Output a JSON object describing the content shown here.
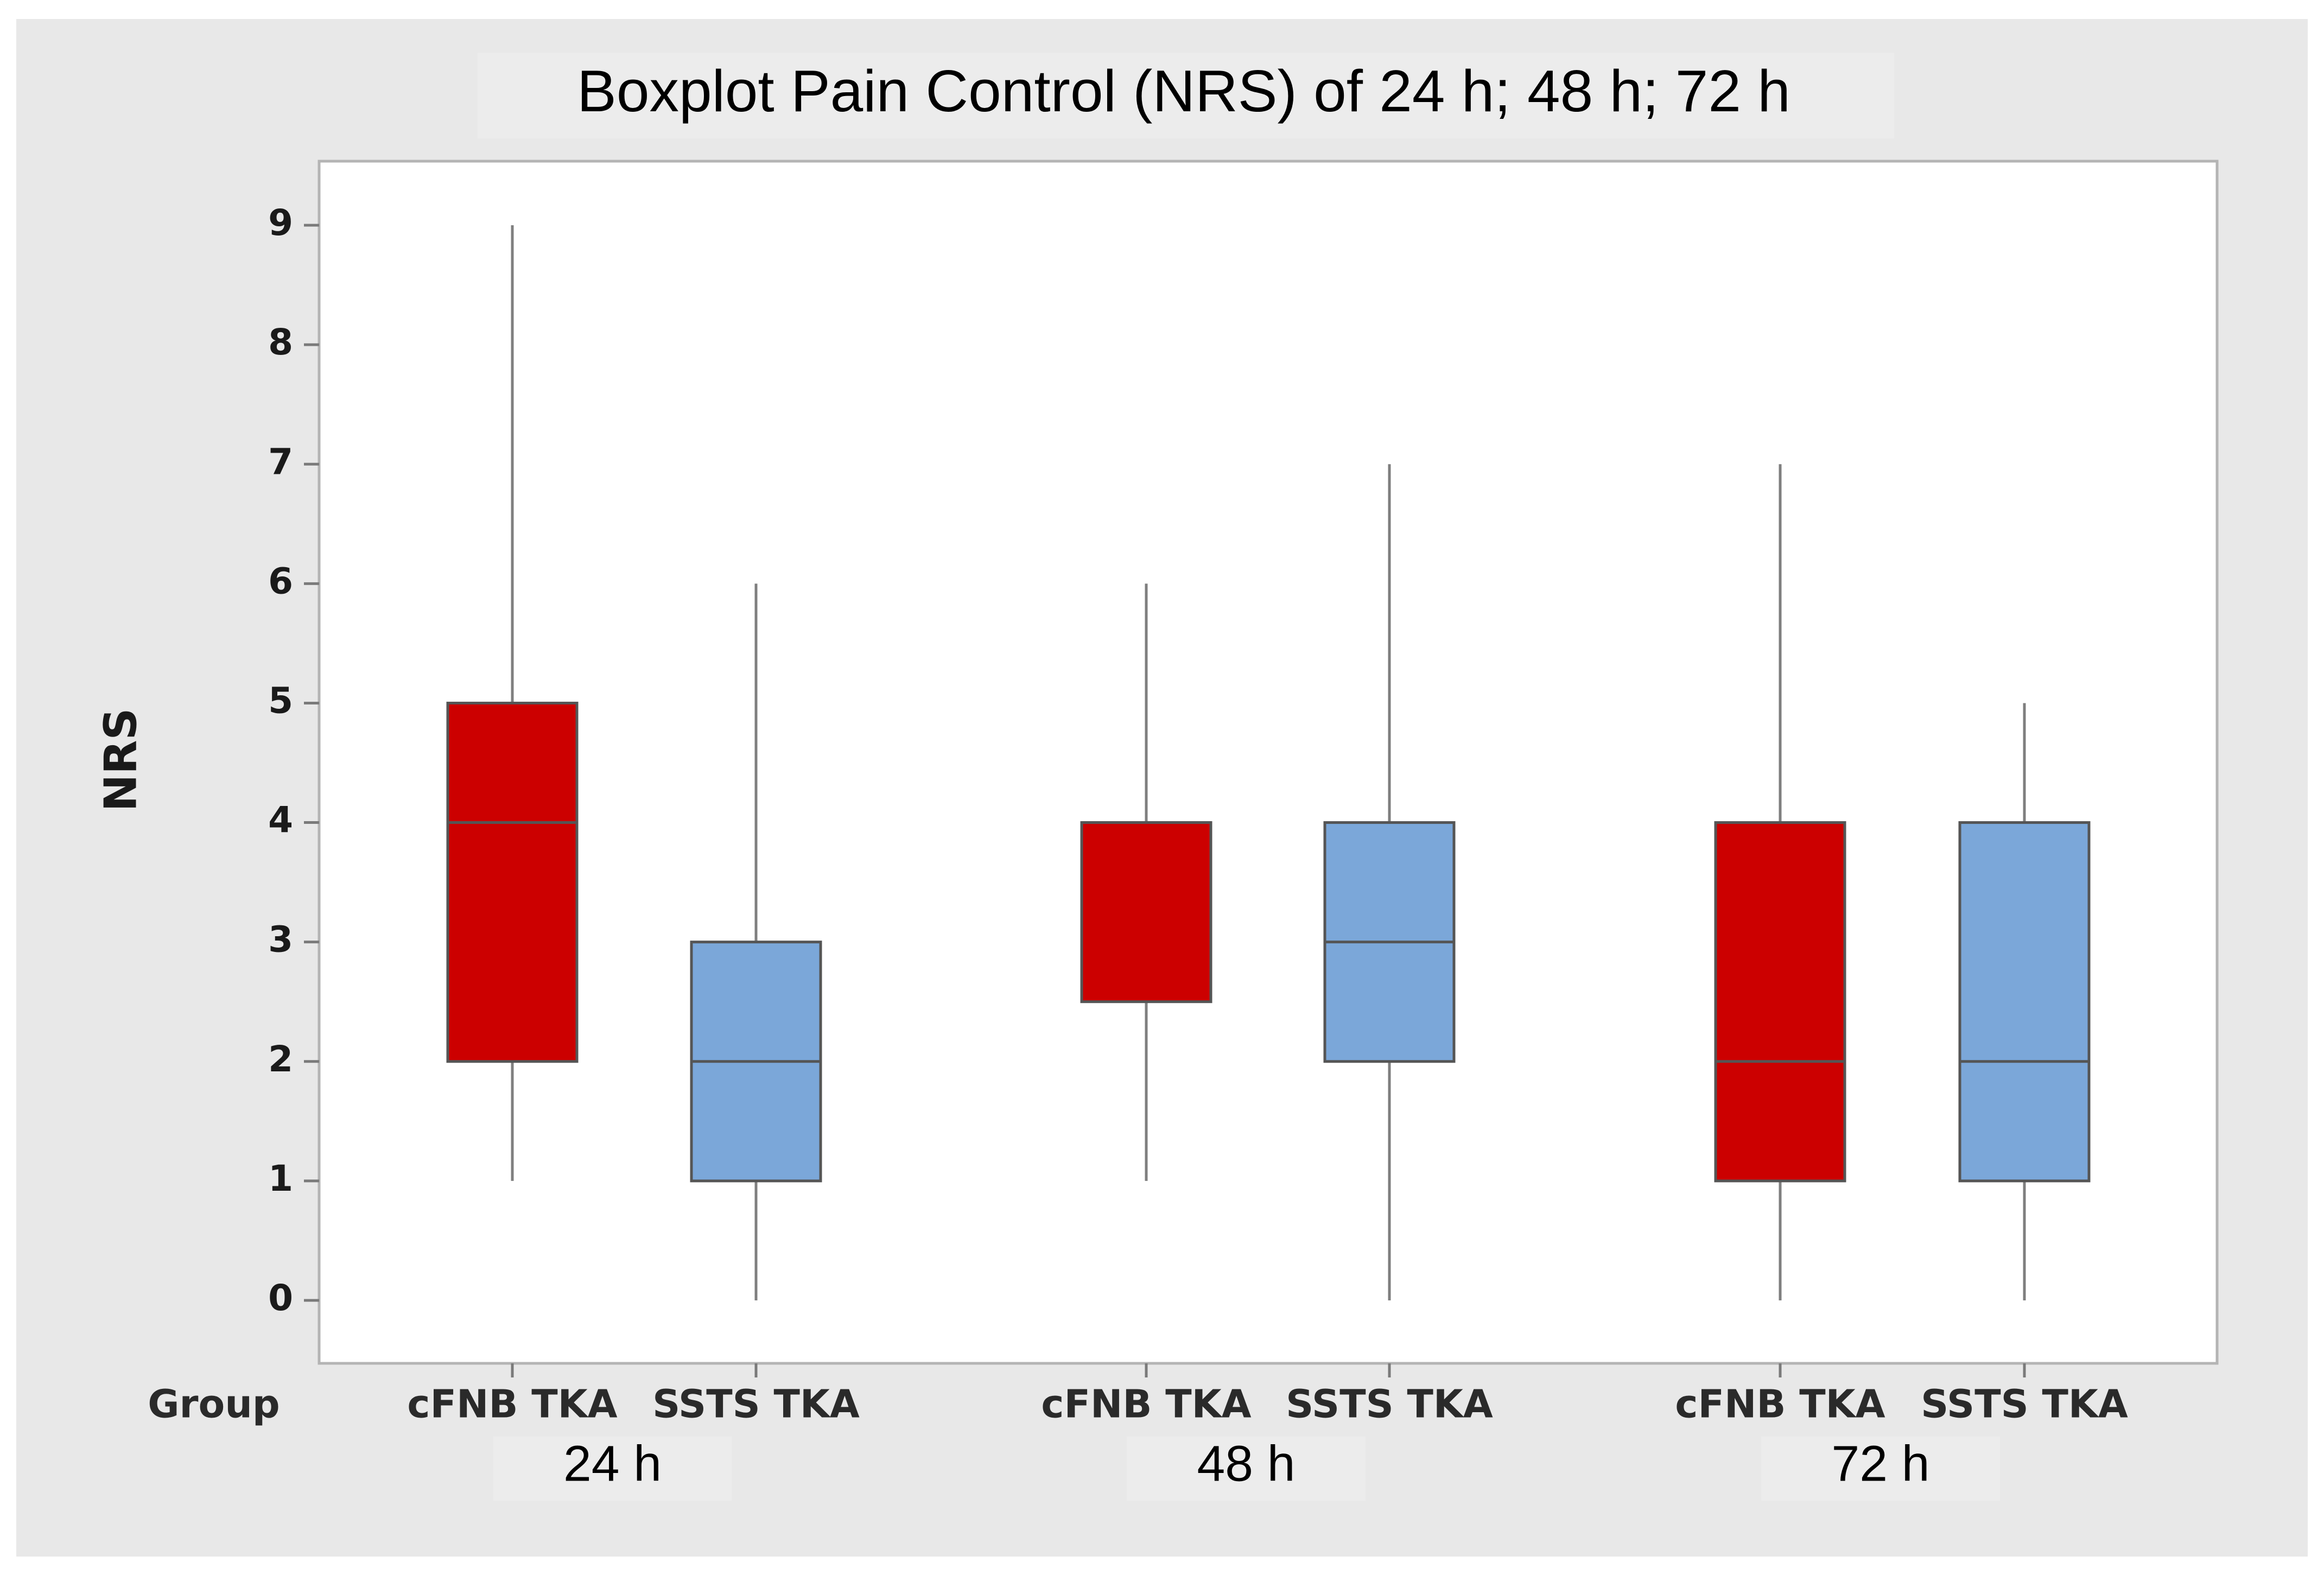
{
  "chart_data": {
    "type": "boxplot",
    "title": "Boxplot Pain Control (NRS) of 24 h; 48 h; 72 h",
    "ylabel": "NRS",
    "xlabel": "Group",
    "ylim": [
      -0.55,
      9.55
    ],
    "yticks": [
      0,
      1,
      2,
      3,
      4,
      5,
      6,
      7,
      8,
      9
    ],
    "grid": false,
    "colors": {
      "cFNB TKA": "#cc0000",
      "SSTS TKA": "#7ba7d9",
      "outer_background": "#e8e8e8",
      "plot_background": "#ffffff",
      "label_box": "#ececec"
    },
    "groups": [
      {
        "time": "24 h",
        "boxes": [
          {
            "group": "cFNB TKA",
            "min": 1,
            "q1": 2,
            "median": 4,
            "q3": 5,
            "max": 9
          },
          {
            "group": "SSTS TKA",
            "min": 0,
            "q1": 1,
            "median": 2,
            "q3": 3,
            "max": 6
          }
        ]
      },
      {
        "time": "48 h",
        "boxes": [
          {
            "group": "cFNB TKA",
            "min": 1,
            "q1": 2.5,
            "median": 4,
            "q3": 4,
            "max": 6
          },
          {
            "group": "SSTS TKA",
            "min": 0,
            "q1": 2,
            "median": 3,
            "q3": 4,
            "max": 7
          }
        ]
      },
      {
        "time": "72 h",
        "boxes": [
          {
            "group": "cFNB TKA",
            "min": 0,
            "q1": 1,
            "median": 2,
            "q3": 4,
            "max": 7
          },
          {
            "group": "SSTS TKA",
            "min": 0,
            "q1": 1,
            "median": 2,
            "q3": 4,
            "max": 5
          }
        ]
      }
    ]
  }
}
